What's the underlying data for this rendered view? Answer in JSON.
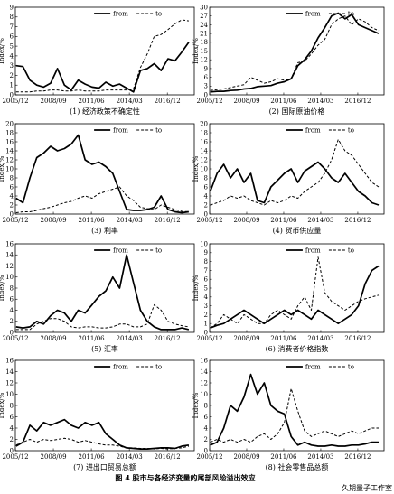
{
  "figure_title": "图 4   股市与各经济变量的尾部风险溢出效应",
  "watermark": "久期量子工作室",
  "legend": {
    "from": "from",
    "to": "to"
  },
  "ylabel": "Index/%",
  "xticks": [
    "2005/12",
    "2008/09",
    "2011/06",
    "2014/03",
    "2016/12"
  ],
  "chart_data": [
    {
      "type": "line",
      "title": "(1) 经济政策不确定性",
      "ylim": [
        0,
        9
      ],
      "yticks": [
        0,
        1,
        2,
        3,
        4,
        5,
        6,
        7,
        8,
        9
      ],
      "x": [
        2006.0,
        2006.5,
        2007.0,
        2007.5,
        2008.0,
        2008.5,
        2009.0,
        2009.5,
        2010.0,
        2010.5,
        2011.0,
        2011.5,
        2012.0,
        2012.5,
        2013.0,
        2013.5,
        2014.0,
        2014.5,
        2015.0,
        2015.5,
        2016.0,
        2016.5,
        2017.0,
        2017.5,
        2018.0,
        2018.5
      ],
      "series": [
        {
          "name": "from",
          "style": "solid",
          "values": [
            3.0,
            2.9,
            1.5,
            1.0,
            0.8,
            1.2,
            2.7,
            1.0,
            0.5,
            1.5,
            1.1,
            0.8,
            0.7,
            1.3,
            0.9,
            1.1,
            0.7,
            0.3,
            2.5,
            2.7,
            3.2,
            2.5,
            3.7,
            3.5,
            4.4,
            5.4
          ]
        },
        {
          "name": "to",
          "style": "dashed",
          "values": [
            0.3,
            0.3,
            0.3,
            0.4,
            0.4,
            0.5,
            0.5,
            0.4,
            0.4,
            0.5,
            0.4,
            0.4,
            0.4,
            0.5,
            0.5,
            0.5,
            0.5,
            0.6,
            2.8,
            4.2,
            6.0,
            6.2,
            6.7,
            7.3,
            7.7,
            7.6
          ]
        }
      ]
    },
    {
      "type": "line",
      "title": "(2) 国际原油价格",
      "ylim": [
        0,
        30
      ],
      "yticks": [
        0,
        3,
        6,
        9,
        12,
        15,
        18,
        21,
        24,
        27,
        30
      ],
      "x": [
        2006.0,
        2006.5,
        2007.0,
        2007.5,
        2008.0,
        2008.5,
        2009.0,
        2009.5,
        2010.0,
        2010.5,
        2011.0,
        2011.5,
        2012.0,
        2012.5,
        2013.0,
        2013.5,
        2014.0,
        2014.5,
        2015.0,
        2015.5,
        2016.0,
        2016.5,
        2017.0,
        2017.5,
        2018.0,
        2018.5
      ],
      "series": [
        {
          "name": "from",
          "style": "solid",
          "values": [
            1.0,
            1.2,
            1.2,
            1.5,
            1.6,
            2.0,
            2.2,
            2.8,
            3.0,
            3.2,
            4.0,
            4.5,
            5.5,
            10.0,
            12.0,
            15.0,
            19.5,
            23.0,
            27.0,
            28.0,
            26.0,
            27.5,
            24.0,
            23.0,
            22.0,
            21.0
          ]
        },
        {
          "name": "to",
          "style": "dashed",
          "values": [
            1.5,
            1.8,
            2.0,
            2.5,
            3.0,
            3.5,
            6.0,
            5.0,
            4.0,
            4.5,
            5.5,
            5.0,
            5.5,
            11.0,
            11.5,
            14.0,
            17.0,
            19.0,
            24.0,
            26.0,
            27.0,
            24.0,
            26.0,
            25.0,
            23.0,
            22.0
          ]
        }
      ]
    },
    {
      "type": "line",
      "title": "(3) 利率",
      "ylim": [
        0,
        20
      ],
      "yticks": [
        0,
        2,
        4,
        6,
        8,
        10,
        12,
        14,
        16,
        18,
        20
      ],
      "x": [
        2006.0,
        2006.5,
        2007.0,
        2007.5,
        2008.0,
        2008.5,
        2009.0,
        2009.5,
        2010.0,
        2010.5,
        2011.0,
        2011.5,
        2012.0,
        2012.5,
        2013.0,
        2013.5,
        2014.0,
        2014.5,
        2015.0,
        2015.5,
        2016.0,
        2016.5,
        2017.0,
        2017.5,
        2018.0,
        2018.5
      ],
      "series": [
        {
          "name": "from",
          "style": "solid",
          "values": [
            3.5,
            2.5,
            8.0,
            12.5,
            13.5,
            15.0,
            14.0,
            14.5,
            15.5,
            17.5,
            12.0,
            11.0,
            11.5,
            10.5,
            9.0,
            5.0,
            1.0,
            0.8,
            0.8,
            1.0,
            1.5,
            4.0,
            1.0,
            0.5,
            0.3,
            0.5
          ]
        },
        {
          "name": "to",
          "style": "dashed",
          "values": [
            0.3,
            0.5,
            0.5,
            0.8,
            1.2,
            1.5,
            2.0,
            2.5,
            2.8,
            3.5,
            4.0,
            3.5,
            4.5,
            5.0,
            5.5,
            6.0,
            4.0,
            3.0,
            1.5,
            1.2,
            1.0,
            2.0,
            1.5,
            1.0,
            0.6,
            0.5
          ]
        }
      ]
    },
    {
      "type": "line",
      "title": "(4) 货币供应量",
      "ylim": [
        0,
        20
      ],
      "yticks": [
        0,
        2,
        4,
        6,
        8,
        10,
        12,
        14,
        16,
        18,
        20
      ],
      "x": [
        2006.0,
        2006.5,
        2007.0,
        2007.5,
        2008.0,
        2008.5,
        2009.0,
        2009.5,
        2010.0,
        2010.5,
        2011.0,
        2011.5,
        2012.0,
        2012.5,
        2013.0,
        2013.5,
        2014.0,
        2014.5,
        2015.0,
        2015.5,
        2016.0,
        2016.5,
        2017.0,
        2017.5,
        2018.0,
        2018.5
      ],
      "series": [
        {
          "name": "from",
          "style": "solid",
          "values": [
            5.0,
            9.0,
            11.0,
            8.0,
            10.0,
            7.0,
            9.0,
            3.0,
            2.5,
            6.0,
            7.5,
            9.0,
            10.0,
            7.0,
            9.5,
            10.5,
            11.5,
            10.0,
            8.0,
            7.0,
            9.0,
            7.0,
            5.0,
            4.0,
            2.5,
            2.0
          ]
        },
        {
          "name": "to",
          "style": "dashed",
          "values": [
            2.0,
            2.5,
            3.0,
            4.0,
            3.5,
            4.0,
            3.0,
            2.5,
            2.0,
            3.0,
            2.5,
            3.0,
            4.0,
            3.5,
            5.0,
            6.0,
            7.0,
            9.0,
            12.0,
            16.5,
            14.0,
            13.0,
            11.0,
            9.0,
            7.0,
            6.0
          ]
        }
      ]
    },
    {
      "type": "line",
      "title": "(5) 汇率",
      "ylim": [
        0,
        16
      ],
      "yticks": [
        0,
        2,
        4,
        6,
        8,
        10,
        12,
        14,
        16
      ],
      "x": [
        2006.0,
        2006.5,
        2007.0,
        2007.5,
        2008.0,
        2008.5,
        2009.0,
        2009.5,
        2010.0,
        2010.5,
        2011.0,
        2011.5,
        2012.0,
        2012.5,
        2013.0,
        2013.5,
        2014.0,
        2014.5,
        2015.0,
        2015.5,
        2016.0,
        2016.5,
        2017.0,
        2017.5,
        2018.0,
        2018.5
      ],
      "series": [
        {
          "name": "from",
          "style": "solid",
          "values": [
            1.0,
            0.8,
            1.0,
            2.0,
            1.5,
            3.0,
            4.0,
            3.5,
            2.0,
            4.0,
            3.5,
            5.0,
            6.5,
            7.5,
            10.0,
            8.0,
            14.0,
            9.0,
            4.0,
            2.0,
            1.0,
            0.5,
            0.5,
            0.5,
            0.8,
            0.5
          ]
        },
        {
          "name": "to",
          "style": "dashed",
          "values": [
            0.5,
            0.5,
            0.5,
            1.5,
            2.0,
            2.5,
            2.5,
            2.0,
            1.0,
            0.8,
            1.0,
            1.0,
            0.8,
            0.8,
            1.0,
            1.5,
            1.5,
            1.0,
            1.0,
            1.5,
            5.0,
            4.0,
            2.0,
            1.5,
            1.2,
            1.0
          ]
        }
      ]
    },
    {
      "type": "line",
      "title": "(6) 消费者价格指数",
      "ylim": [
        0,
        10
      ],
      "yticks": [
        0,
        1,
        2,
        3,
        4,
        5,
        6,
        7,
        8,
        9,
        10
      ],
      "x": [
        2006.0,
        2006.5,
        2007.0,
        2007.5,
        2008.0,
        2008.5,
        2009.0,
        2009.5,
        2010.0,
        2010.5,
        2011.0,
        2011.5,
        2012.0,
        2012.5,
        2013.0,
        2013.5,
        2014.0,
        2014.5,
        2015.0,
        2015.5,
        2016.0,
        2016.5,
        2017.0,
        2017.5,
        2018.0,
        2018.5
      ],
      "series": [
        {
          "name": "from",
          "style": "solid",
          "values": [
            0.5,
            0.8,
            1.0,
            1.5,
            2.0,
            2.5,
            2.0,
            1.5,
            1.0,
            1.5,
            2.0,
            2.5,
            2.0,
            2.5,
            2.0,
            1.5,
            2.5,
            2.0,
            1.5,
            1.0,
            1.5,
            2.0,
            3.0,
            5.5,
            7.0,
            7.5
          ]
        },
        {
          "name": "to",
          "style": "dashed",
          "values": [
            0.5,
            1.0,
            2.0,
            1.5,
            1.0,
            2.0,
            1.5,
            1.0,
            1.0,
            2.0,
            2.5,
            2.0,
            1.5,
            3.0,
            4.0,
            2.5,
            8.5,
            4.5,
            3.5,
            3.0,
            2.5,
            3.0,
            3.5,
            3.8,
            4.0,
            4.2
          ]
        }
      ]
    },
    {
      "type": "line",
      "title": "(7) 进出口贸易总额",
      "ylim": [
        0,
        16
      ],
      "yticks": [
        0,
        2,
        4,
        6,
        8,
        10,
        12,
        14,
        16
      ],
      "x": [
        2006.0,
        2006.5,
        2007.0,
        2007.5,
        2008.0,
        2008.5,
        2009.0,
        2009.5,
        2010.0,
        2010.5,
        2011.0,
        2011.5,
        2012.0,
        2012.5,
        2013.0,
        2013.5,
        2014.0,
        2014.5,
        2015.0,
        2015.5,
        2016.0,
        2016.5,
        2017.0,
        2017.5,
        2018.0,
        2018.5
      ],
      "series": [
        {
          "name": "from",
          "style": "solid",
          "values": [
            0.8,
            1.5,
            4.5,
            3.5,
            5.0,
            4.5,
            5.0,
            5.5,
            4.5,
            4.0,
            5.0,
            4.5,
            5.0,
            3.0,
            2.0,
            1.0,
            0.5,
            0.4,
            0.3,
            0.3,
            0.4,
            0.5,
            0.5,
            0.4,
            0.8,
            1.0
          ]
        },
        {
          "name": "to",
          "style": "dashed",
          "values": [
            1.0,
            1.5,
            2.0,
            1.5,
            2.0,
            1.8,
            2.0,
            2.2,
            2.0,
            1.5,
            1.8,
            1.5,
            1.2,
            1.0,
            1.0,
            0.8,
            0.5,
            0.5,
            0.4,
            0.4,
            0.3,
            0.4,
            0.3,
            0.4,
            0.5,
            0.8
          ]
        }
      ]
    },
    {
      "type": "line",
      "title": "(8) 社会零售品总额",
      "ylim": [
        0,
        16
      ],
      "yticks": [
        0,
        2,
        4,
        6,
        8,
        10,
        12,
        14,
        16
      ],
      "x": [
        2006.0,
        2006.5,
        2007.0,
        2007.5,
        2008.0,
        2008.5,
        2009.0,
        2009.5,
        2010.0,
        2010.5,
        2011.0,
        2011.5,
        2012.0,
        2012.5,
        2013.0,
        2013.5,
        2014.0,
        2014.5,
        2015.0,
        2015.5,
        2016.0,
        2016.5,
        2017.0,
        2017.5,
        2018.0,
        2018.5
      ],
      "series": [
        {
          "name": "from",
          "style": "solid",
          "values": [
            1.0,
            1.5,
            4.0,
            8.0,
            7.0,
            9.5,
            13.5,
            10.0,
            12.0,
            8.0,
            7.0,
            6.5,
            2.5,
            1.0,
            1.5,
            1.0,
            0.8,
            0.8,
            1.0,
            0.8,
            0.8,
            1.0,
            1.0,
            1.2,
            1.5,
            1.5
          ]
        },
        {
          "name": "to",
          "style": "dashed",
          "values": [
            1.5,
            2.0,
            1.5,
            2.0,
            1.5,
            2.0,
            1.5,
            2.5,
            3.0,
            2.0,
            3.0,
            5.0,
            11.0,
            7.0,
            3.5,
            2.5,
            3.0,
            3.5,
            3.0,
            2.5,
            3.0,
            3.5,
            3.0,
            3.5,
            4.0,
            4.0
          ]
        }
      ]
    }
  ]
}
